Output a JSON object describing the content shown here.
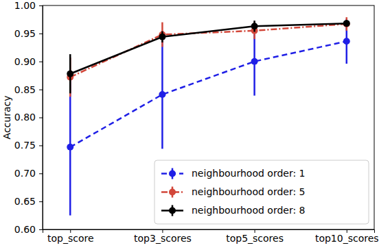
{
  "chart_data": {
    "type": "line",
    "y_label": "Accuracy",
    "categories": [
      "top_score",
      "top3_scores",
      "top5_scores",
      "top10_scores"
    ],
    "series": [
      {
        "name": "neighbourhood order: 1",
        "color": "#1f1fe6",
        "line_style": "dashed",
        "marker": "circle",
        "values": [
          0.747,
          0.841,
          0.9,
          0.936
        ],
        "errors": [
          0.122,
          0.097,
          0.061,
          0.04
        ]
      },
      {
        "name": "neighbourhood order: 5",
        "color": "#d2473a",
        "line_style": "dashdot",
        "marker": "circle",
        "values": [
          0.872,
          0.948,
          0.955,
          0.967
        ],
        "errors": [
          0.035,
          0.022,
          0.015,
          0.012
        ]
      },
      {
        "name": "neighbourhood order: 8",
        "color": "#000000",
        "line_style": "solid",
        "marker": "circle",
        "values": [
          0.878,
          0.944,
          0.963,
          0.968
        ],
        "errors": [
          0.035,
          0.01,
          0.01,
          0.006
        ]
      }
    ],
    "ylim": [
      0.6,
      1.0
    ],
    "yticks": [
      {
        "value": 0.6,
        "label": "0.60"
      },
      0.65,
      {
        "value": 0.7,
        "label": "0.70"
      },
      0.75,
      {
        "value": 0.8,
        "label": "0.80"
      },
      0.85,
      {
        "value": 0.9,
        "label": "0.90"
      },
      0.95,
      {
        "value": 1.0,
        "label": "1.00"
      }
    ],
    "grid": false,
    "legend": "lower right"
  }
}
